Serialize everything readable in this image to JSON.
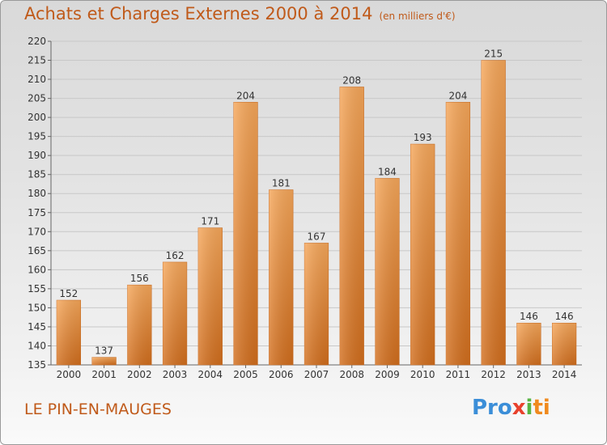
{
  "chart_data": {
    "type": "bar",
    "title": "Achats et Charges Externes 2000 à 2014",
    "subtitle": "(en milliers d'€)",
    "categories": [
      "2000",
      "2001",
      "2002",
      "2003",
      "2004",
      "2005",
      "2006",
      "2007",
      "2008",
      "2009",
      "2010",
      "2011",
      "2012",
      "2013",
      "2014"
    ],
    "values": [
      152,
      137,
      156,
      162,
      171,
      204,
      181,
      167,
      208,
      184,
      193,
      204,
      215,
      146,
      146
    ],
    "ylim": [
      135,
      220
    ],
    "yticks": [
      135,
      140,
      145,
      150,
      155,
      160,
      165,
      170,
      175,
      180,
      185,
      190,
      195,
      200,
      205,
      210,
      215,
      220
    ],
    "grid": true,
    "bar_color": "#f19a45",
    "bar_color_dark": "#d9701b"
  },
  "place_name": "LE PIN-EN-MAUGES",
  "logo": {
    "parts": [
      "Pro",
      "x",
      "i",
      "ti"
    ]
  }
}
